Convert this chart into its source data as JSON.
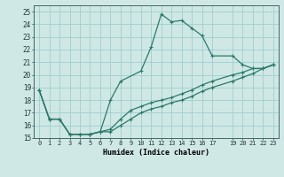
{
  "xlabel": "Humidex (Indice chaleur)",
  "ylabel": "",
  "background_color": "#cfe8e5",
  "grid_color": "#9ecece",
  "line_color": "#2a7a6a",
  "xlim": [
    -0.5,
    23.5
  ],
  "ylim": [
    15,
    25.5
  ],
  "xtick_vals": [
    0,
    1,
    2,
    3,
    4,
    5,
    6,
    7,
    8,
    9,
    10,
    11,
    12,
    13,
    14,
    15,
    16,
    17,
    19,
    20,
    21,
    22,
    23
  ],
  "xtick_labels": [
    "0",
    "1",
    "2",
    "3",
    "4",
    "5",
    "6",
    "7",
    "8",
    "9",
    "10",
    "11",
    "12",
    "13",
    "14",
    "15",
    "16",
    "17",
    "19",
    "20",
    "21",
    "22",
    "23"
  ],
  "ytick_vals": [
    15,
    16,
    17,
    18,
    19,
    20,
    21,
    22,
    23,
    24,
    25
  ],
  "ytick_labels": [
    "15",
    "16",
    "17",
    "18",
    "19",
    "20",
    "21",
    "22",
    "23",
    "24",
    "25"
  ],
  "line1_x": [
    0,
    1,
    2,
    3,
    4,
    5,
    6,
    7,
    8,
    10,
    11,
    12,
    13,
    14,
    15,
    16,
    17,
    19,
    20,
    21,
    22,
    23
  ],
  "line1_y": [
    18.8,
    16.5,
    16.5,
    15.3,
    15.3,
    15.3,
    15.5,
    18.0,
    19.5,
    20.3,
    22.2,
    24.8,
    24.2,
    24.3,
    23.7,
    23.1,
    21.5,
    21.5,
    20.8,
    20.5,
    20.5,
    20.8
  ],
  "line2_x": [
    0,
    1,
    2,
    3,
    4,
    5,
    6,
    7,
    8,
    9,
    10,
    11,
    12,
    13,
    14,
    15,
    16,
    17,
    19,
    20,
    21,
    22,
    23
  ],
  "line2_y": [
    18.8,
    16.5,
    16.5,
    15.3,
    15.3,
    15.3,
    15.5,
    15.7,
    16.5,
    17.2,
    17.5,
    17.8,
    18.0,
    18.2,
    18.5,
    18.8,
    19.2,
    19.5,
    20.0,
    20.2,
    20.5,
    20.5,
    20.8
  ],
  "line3_x": [
    0,
    1,
    2,
    3,
    4,
    5,
    6,
    7,
    8,
    9,
    10,
    11,
    12,
    13,
    14,
    15,
    16,
    17,
    19,
    20,
    21,
    22,
    23
  ],
  "line3_y": [
    18.8,
    16.5,
    16.5,
    15.3,
    15.3,
    15.3,
    15.5,
    15.5,
    16.0,
    16.5,
    17.0,
    17.3,
    17.5,
    17.8,
    18.0,
    18.3,
    18.7,
    19.0,
    19.5,
    19.8,
    20.1,
    20.5,
    20.8
  ]
}
